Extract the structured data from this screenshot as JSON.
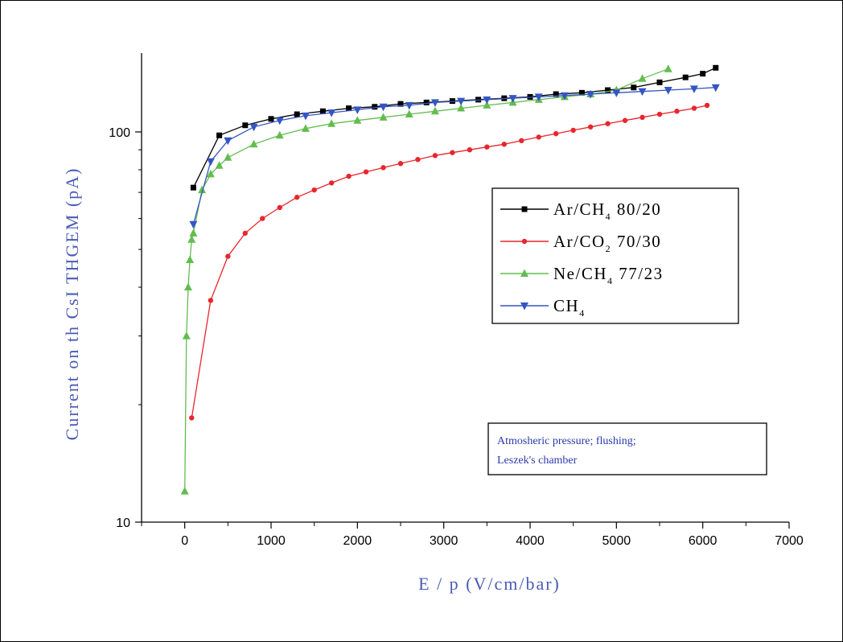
{
  "chart_data": {
    "type": "line",
    "title": "",
    "xlabel": "E / p (V/cm/bar)",
    "ylabel": "Current on th CsI THGEM (pA)",
    "xlim": [
      -500,
      7000
    ],
    "ylim": [
      10,
      160
    ],
    "yscale": "log",
    "x_ticks": [
      0,
      1000,
      2000,
      3000,
      4000,
      5000,
      6000,
      7000
    ],
    "x_tick_labels": [
      "0",
      "1000",
      "2000",
      "3000",
      "4000",
      "5000",
      "6000",
      "7000"
    ],
    "y_ticks": [
      10,
      100
    ],
    "y_tick_labels": [
      "10",
      "100"
    ],
    "grid": false,
    "legend_position": "right-middle",
    "series": [
      {
        "name": "Ar/CH4 80/20",
        "legend_main": "Ar/CH",
        "legend_sub": "4",
        "legend_rest": " 80/20",
        "color": "#000000",
        "marker": "square",
        "x": [
          100,
          400,
          700,
          1000,
          1300,
          1600,
          1900,
          2200,
          2500,
          2800,
          3100,
          3400,
          3700,
          4000,
          4300,
          4600,
          4900,
          5200,
          5500,
          5800,
          6000,
          6150
        ],
        "y": [
          72,
          98,
          104,
          108,
          111,
          113,
          115,
          116,
          118,
          119,
          120,
          121,
          122,
          123,
          125,
          126,
          128,
          130,
          134,
          138,
          141,
          146
        ]
      },
      {
        "name": "Ar/CO2 70/30",
        "legend_main": "Ar/CO",
        "legend_sub": "2",
        "legend_rest": " 70/30",
        "color": "#e8262d",
        "marker": "circle",
        "x": [
          80,
          300,
          500,
          700,
          900,
          1100,
          1300,
          1500,
          1700,
          1900,
          2100,
          2300,
          2500,
          2700,
          2900,
          3100,
          3300,
          3500,
          3700,
          3900,
          4100,
          4300,
          4500,
          4700,
          4900,
          5100,
          5300,
          5500,
          5700,
          5900,
          6050
        ],
        "y": [
          18.5,
          37,
          48,
          55,
          60,
          64,
          68,
          71,
          74,
          77,
          79,
          81,
          83,
          85,
          87,
          88.5,
          90,
          91.5,
          93,
          95,
          97,
          99,
          101,
          103,
          105,
          107,
          109,
          111,
          113,
          115,
          117
        ]
      },
      {
        "name": "Ne/CH4 77/23",
        "legend_main": "Ne/CH",
        "legend_sub": "4",
        "legend_rest": " 77/23",
        "color": "#62bd4f",
        "marker": "triangle-up",
        "x": [
          0,
          20,
          40,
          60,
          80,
          100,
          200,
          300,
          400,
          500,
          800,
          1100,
          1400,
          1700,
          2000,
          2300,
          2600,
          2900,
          3200,
          3500,
          3800,
          4100,
          4400,
          4700,
          5000,
          5300,
          5600
        ],
        "y": [
          12,
          30,
          40,
          47,
          53,
          55,
          71,
          78,
          82,
          86,
          93,
          98,
          102,
          105,
          107,
          109,
          111,
          113,
          115,
          117,
          119,
          121,
          123,
          125,
          128,
          137,
          145
        ]
      },
      {
        "name": "CH4",
        "legend_main": "CH",
        "legend_sub": "4",
        "legend_rest": "",
        "color": "#3555c2",
        "marker": "triangle-down",
        "x": [
          100,
          300,
          500,
          800,
          1100,
          1400,
          1700,
          2000,
          2300,
          2600,
          2900,
          3200,
          3500,
          3800,
          4100,
          4400,
          4700,
          5000,
          5300,
          5600,
          5900,
          6150
        ],
        "y": [
          58,
          84,
          95,
          103,
          107,
          110,
          112,
          114,
          116,
          117,
          119,
          120,
          121,
          122,
          123,
          124,
          125,
          126,
          127,
          128,
          129,
          130
        ]
      }
    ],
    "annotation_lines": [
      "Atmosheric pressure; flushing;",
      "Leszek's chamber"
    ]
  }
}
